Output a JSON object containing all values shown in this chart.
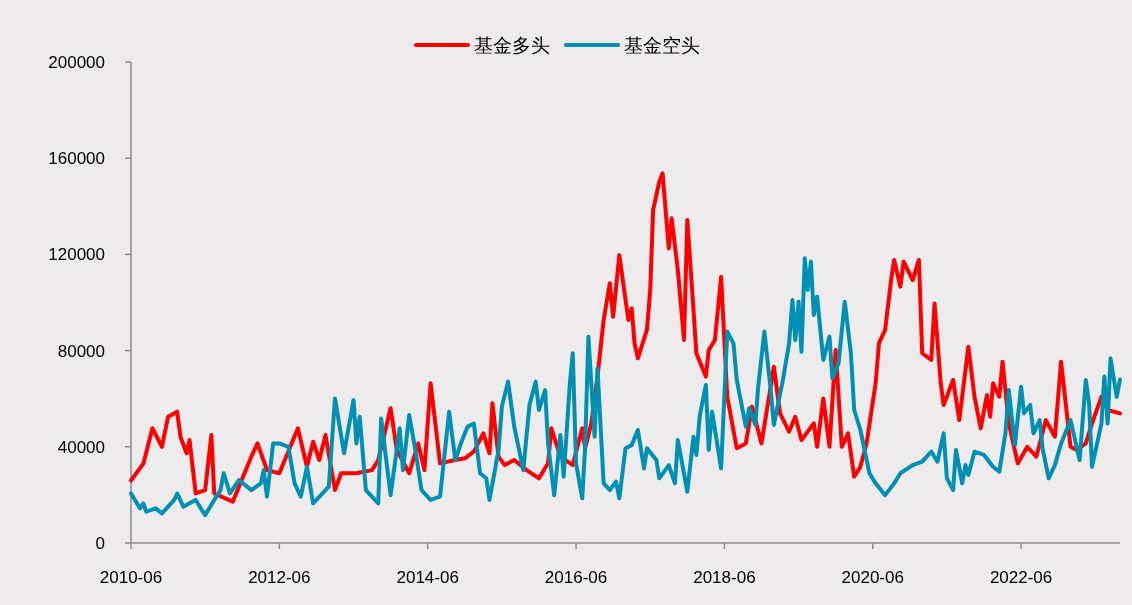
{
  "chart_data": {
    "type": "line",
    "legend": "top",
    "line_style": "solid",
    "xlim": [
      "2010-06",
      "2023-10"
    ],
    "ylim": [
      0,
      200000
    ],
    "xticks": [
      "2010-06",
      "2012-06",
      "2014-06",
      "2016-06",
      "2018-06",
      "2020-06",
      "2022-06"
    ],
    "yticks": [
      0,
      40000,
      80000,
      120000,
      160000,
      200000
    ],
    "series": [
      {
        "name": "基金多头",
        "color": "#ff0000",
        "x": [
          "2010-06-01",
          "2010-08-01",
          "2010-09-15",
          "2010-11-01",
          "2010-12-01",
          "2011-01-15",
          "2011-02-01",
          "2011-03-01",
          "2011-03-15",
          "2011-04-15",
          "2011-06-01",
          "2011-07-01",
          "2011-07-15",
          "2011-10-15",
          "2012-01-15",
          "2012-02-15",
          "2012-04-01",
          "2012-06-01",
          "2012-09-01",
          "2012-10-15",
          "2012-11-15",
          "2012-12-15",
          "2013-01-15",
          "2013-03-01",
          "2013-04-01",
          "2013-06-15",
          "2013-09-01",
          "2013-10-01",
          "2013-12-01",
          "2014-01-01",
          "2014-03-01",
          "2014-04-15",
          "2014-05-15",
          "2014-06-15",
          "2014-08-01",
          "2014-10-15",
          "2014-12-01",
          "2015-01-15",
          "2015-03-01",
          "2015-04-01",
          "2015-04-15",
          "2015-05-15",
          "2015-06-15",
          "2015-08-01",
          "2015-10-01",
          "2015-12-01",
          "2016-01-15",
          "2016-02-01",
          "2016-03-15",
          "2016-05-15",
          "2016-07-01",
          "2016-07-15",
          "2016-08-15",
          "2016-09-15",
          "2016-10-15",
          "2016-11-15",
          "2016-12-01",
          "2017-01-01",
          "2017-02-15",
          "2017-03-01",
          "2017-03-15",
          "2017-04-01",
          "2017-05-15",
          "2017-06-01",
          "2017-06-15",
          "2017-07-15",
          "2017-08-01",
          "2017-09-01",
          "2017-09-15",
          "2017-10-15",
          "2017-11-15",
          "2017-12-01",
          "2018-01-01",
          "2018-01-15",
          "2018-03-01",
          "2018-03-15",
          "2018-04-15",
          "2018-05-15",
          "2018-06-15",
          "2018-08-01",
          "2018-09-15",
          "2018-10-15",
          "2018-12-01",
          "2019-02-01",
          "2019-03-01",
          "2019-04-15",
          "2019-05-15",
          "2019-06-15",
          "2019-08-15",
          "2019-09-01",
          "2019-10-01",
          "2019-11-01",
          "2019-12-01",
          "2020-01-01",
          "2020-02-01",
          "2020-03-01",
          "2020-04-01",
          "2020-05-01",
          "2020-06-15",
          "2020-07-01",
          "2020-08-01",
          "2020-09-01",
          "2020-09-15",
          "2020-10-15",
          "2020-11-01",
          "2020-12-15",
          "2021-01-15",
          "2021-02-01",
          "2021-03-15",
          "2021-04-01",
          "2021-05-01",
          "2021-05-15",
          "2021-07-01",
          "2021-08-01",
          "2021-09-15",
          "2021-10-15",
          "2021-11-15",
          "2021-12-15",
          "2022-01-01",
          "2022-01-15",
          "2022-02-15",
          "2022-03-01",
          "2022-04-01",
          "2022-05-15",
          "2022-07-01",
          "2022-08-15",
          "2022-10-01",
          "2022-11-15",
          "2022-12-15",
          "2023-02-01",
          "2023-03-01",
          "2023-04-15",
          "2023-05-15",
          "2023-07-01",
          "2023-08-01",
          "2023-10-01"
        ],
        "values": [
          26000,
          33000,
          47700,
          40000,
          52500,
          54600,
          44200,
          37300,
          42800,
          20600,
          22000,
          44900,
          20600,
          17200,
          35900,
          41400,
          30300,
          29000,
          47700,
          31700,
          42100,
          34500,
          44900,
          22000,
          29000,
          29000,
          30300,
          34500,
          56000,
          38700,
          29000,
          41400,
          30300,
          66400,
          33100,
          34500,
          35200,
          38000,
          45600,
          37300,
          58100,
          35900,
          32400,
          34500,
          30300,
          26900,
          33100,
          47700,
          35900,
          32400,
          47700,
          39400,
          49700,
          69200,
          92700,
          108000,
          94100,
          119700,
          92700,
          97600,
          83000,
          76800,
          88600,
          105200,
          138400,
          150200,
          153700,
          122500,
          135000,
          113500,
          84400,
          134300,
          96900,
          78900,
          69200,
          80200,
          84400,
          110700,
          60800,
          39400,
          41400,
          56700,
          41400,
          73300,
          53900,
          46300,
          52500,
          42800,
          49700,
          40000,
          60100,
          40000,
          80200,
          40000,
          45600,
          27600,
          31700,
          41400,
          66400,
          83000,
          88600,
          110000,
          117700,
          106600,
          117000,
          109300,
          117700,
          78900,
          76100,
          99600,
          66400,
          57400,
          67800,
          51100,
          81600,
          60800,
          47700,
          61500,
          52500,
          66400,
          60800,
          75400,
          49700,
          33100,
          40000,
          35900,
          51100,
          44200,
          75400,
          40000,
          38700,
          41400,
          49700,
          60800,
          55300,
          53900
        ]
      },
      {
        "name": "基金空头",
        "color": "#0090b4",
        "x": [
          "2010-06-01",
          "2010-07-15",
          "2010-08-01",
          "2010-08-15",
          "2010-10-01",
          "2010-11-01",
          "2011-01-01",
          "2011-01-15",
          "2011-02-15",
          "2011-03-15",
          "2011-04-15",
          "2011-05-15",
          "2011-06-01",
          "2011-07-15",
          "2011-08-15",
          "2011-09-01",
          "2011-10-01",
          "2011-11-15",
          "2012-01-15",
          "2012-03-01",
          "2012-03-15",
          "2012-04-01",
          "2012-05-01",
          "2012-06-01",
          "2012-07-15",
          "2012-08-15",
          "2012-09-15",
          "2012-10-15",
          "2012-11-15",
          "2013-02-01",
          "2013-03-01",
          "2013-04-15",
          "2013-06-01",
          "2013-06-15",
          "2013-07-01",
          "2013-08-01",
          "2013-10-01",
          "2013-10-15",
          "2013-12-01",
          "2014-01-15",
          "2014-02-01",
          "2014-03-01",
          "2014-04-01",
          "2014-05-01",
          "2014-06-15",
          "2014-08-01",
          "2014-09-15",
          "2014-10-15",
          "2014-11-15",
          "2014-12-15",
          "2015-01-15",
          "2015-02-15",
          "2015-03-15",
          "2015-04-01",
          "2015-05-15",
          "2015-06-01",
          "2015-07-01",
          "2015-08-01",
          "2015-09-15",
          "2015-10-15",
          "2015-11-15",
          "2015-12-01",
          "2016-01-01",
          "2016-01-15",
          "2016-02-15",
          "2016-03-15",
          "2016-04-01",
          "2016-05-01",
          "2016-05-15",
          "2016-06-01",
          "2016-07-01",
          "2016-07-15",
          "2016-08-01",
          "2016-09-01",
          "2016-09-15",
          "2016-10-15",
          "2016-11-15",
          "2016-12-15",
          "2017-01-01",
          "2017-02-01",
          "2017-03-01",
          "2017-04-01",
          "2017-05-01",
          "2017-05-15",
          "2017-07-01",
          "2017-07-15",
          "2017-09-01",
          "2017-10-01",
          "2017-10-15",
          "2017-12-01",
          "2018-01-01",
          "2018-01-15",
          "2018-02-01",
          "2018-03-01",
          "2018-03-15",
          "2018-04-01",
          "2018-05-15",
          "2018-06-15",
          "2018-07-15",
          "2018-08-01",
          "2018-09-15",
          "2018-10-01",
          "2018-11-01",
          "2018-11-15",
          "2018-12-15",
          "2019-01-15",
          "2019-02-01",
          "2019-03-15",
          "2019-04-15",
          "2019-05-01",
          "2019-05-15",
          "2019-06-01",
          "2019-06-15",
          "2019-07-01",
          "2019-07-15",
          "2019-08-01",
          "2019-08-15",
          "2019-09-01",
          "2019-10-01",
          "2019-11-01",
          "2019-11-15",
          "2019-12-15",
          "2020-01-15",
          "2020-02-15",
          "2020-03-01",
          "2020-04-01",
          "2020-05-15",
          "2020-06-15",
          "2020-08-01",
          "2020-09-15",
          "2020-10-15",
          "2020-12-15",
          "2021-02-01",
          "2021-03-15",
          "2021-04-15",
          "2021-05-15",
          "2021-06-01",
          "2021-07-01",
          "2021-07-15",
          "2021-08-15",
          "2021-09-01",
          "2021-09-15",
          "2021-10-15",
          "2021-12-01",
          "2022-01-15",
          "2022-02-15",
          "2022-03-15",
          "2022-04-01",
          "2022-05-01",
          "2022-06-01",
          "2022-06-15",
          "2022-07-15",
          "2022-08-01",
          "2022-09-01",
          "2022-09-15",
          "2022-10-15",
          "2022-11-15",
          "2022-12-15",
          "2023-02-01",
          "2023-03-15",
          "2023-04-15",
          "2023-05-01",
          "2023-05-15",
          "2023-07-01",
          "2023-07-15",
          "2023-08-01",
          "2023-08-15",
          "2023-09-15",
          "2023-10-01"
        ],
        "values": [
          20600,
          14400,
          16500,
          13000,
          14400,
          12300,
          17900,
          20600,
          15100,
          16500,
          17900,
          13700,
          11600,
          17900,
          22000,
          29000,
          20600,
          26200,
          22000,
          24800,
          30300,
          19300,
          41400,
          41400,
          40000,
          24800,
          19300,
          31700,
          16500,
          23400,
          60100,
          37300,
          59400,
          41400,
          52500,
          22000,
          16500,
          51800,
          19900,
          47700,
          30300,
          53200,
          38700,
          22000,
          17900,
          19300,
          54600,
          34500,
          42100,
          48400,
          49700,
          29000,
          26900,
          17900,
          38700,
          56700,
          67100,
          48400,
          30300,
          57400,
          67100,
          55300,
          63600,
          41400,
          19900,
          44900,
          27600,
          66400,
          78900,
          33100,
          18600,
          40000,
          85800,
          44200,
          72600,
          24800,
          22000,
          25500,
          18600,
          39400,
          40700,
          47000,
          31000,
          39400,
          34500,
          26900,
          32400,
          24800,
          42800,
          21300,
          44200,
          36600,
          52500,
          65700,
          38700,
          54600,
          31000,
          87900,
          83000,
          67800,
          48400,
          56000,
          49100,
          65000,
          87900,
          64300,
          49100,
          67800,
          83000,
          101000,
          84400,
          100300,
          79500,
          118400,
          105200,
          117000,
          94800,
          102400,
          76100,
          85800,
          68500,
          74700,
          100300,
          78900,
          55300,
          47000,
          29000,
          24800,
          19900,
          24800,
          29000,
          32400,
          33800,
          38000,
          33800,
          45600,
          26900,
          22000,
          38700,
          24800,
          32400,
          28300,
          38000,
          36600,
          31700,
          29600,
          45600,
          63600,
          40700,
          65000,
          53900,
          57400,
          45600,
          51100,
          39400,
          26900,
          32400,
          41400,
          51100,
          34500,
          67800,
          58100,
          31700,
          49700,
          69200,
          49700,
          76800,
          60800,
          68000
        ]
      }
    ]
  }
}
